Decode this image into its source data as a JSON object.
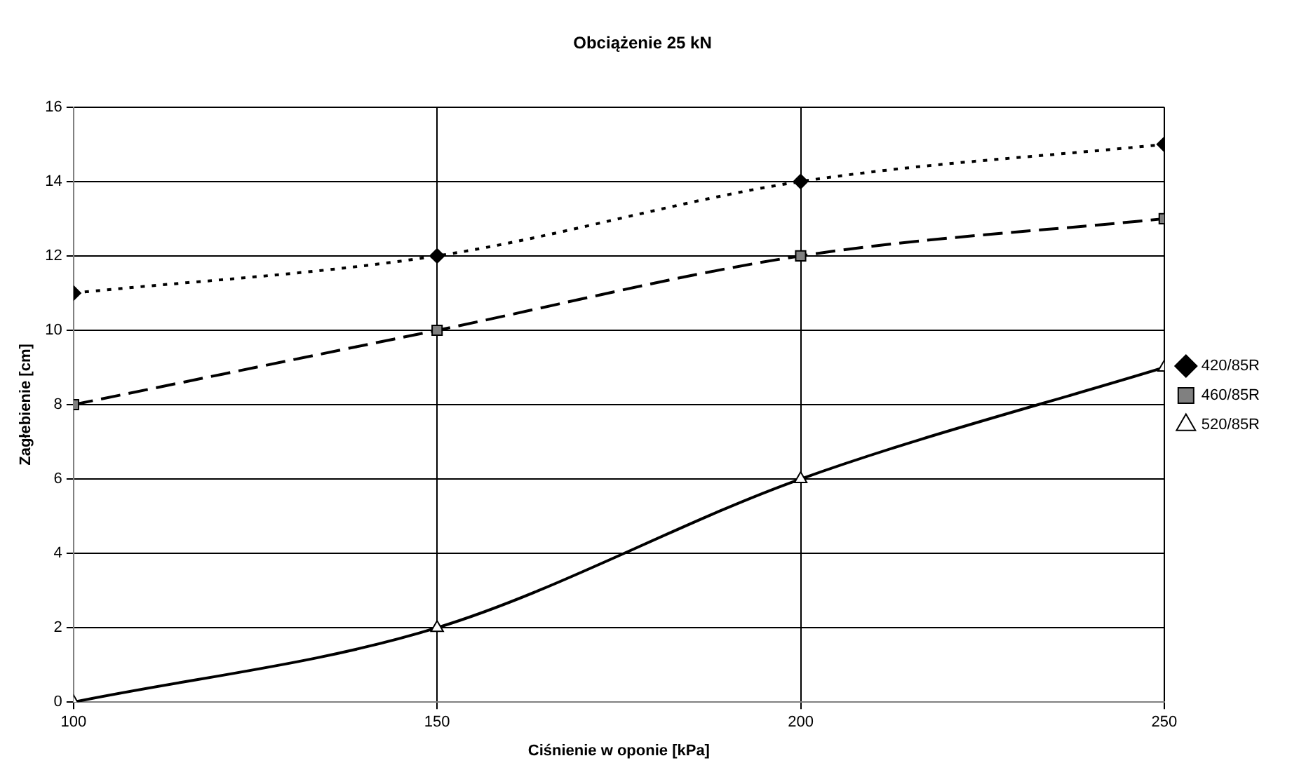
{
  "chart_data": {
    "type": "line",
    "title": "Obciążenie 25 kN",
    "xlabel": "Ciśnienie w oponie [kPa]",
    "ylabel": "Zagłebienie [cm]",
    "x": [
      100,
      150,
      200,
      250
    ],
    "xlim": [
      100,
      250
    ],
    "xticks": [
      100,
      150,
      200,
      250
    ],
    "ylim": [
      0,
      16
    ],
    "yticks": [
      0,
      2,
      4,
      6,
      8,
      10,
      12,
      14,
      16
    ],
    "grid": true,
    "legend": "right",
    "series": [
      {
        "name": "420/85R",
        "color": "#000000",
        "values": [
          11,
          12,
          14,
          15
        ],
        "marker": "diamond",
        "line_style": "dotted"
      },
      {
        "name": "460/85R",
        "color": "#000000",
        "values": [
          8,
          10,
          12,
          13
        ],
        "marker": "square",
        "line_style": "dashed"
      },
      {
        "name": "520/85R",
        "color": "#000000",
        "values": [
          0,
          2,
          6,
          9
        ],
        "marker": "triangle",
        "line_style": "solid"
      }
    ]
  }
}
